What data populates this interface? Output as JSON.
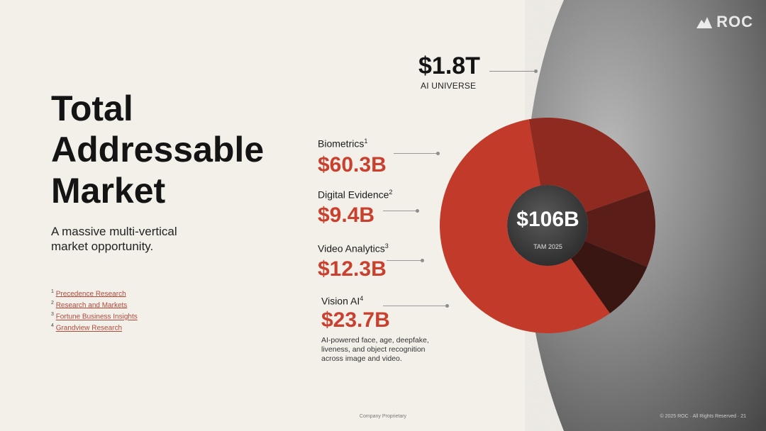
{
  "brand": {
    "logo_text": "ROC"
  },
  "slide": {
    "title_lines": [
      "Total",
      "Addressable",
      "Market"
    ],
    "subtitle": "A massive multi-vertical market opportunity."
  },
  "footnotes": [
    {
      "num": "1",
      "text": "Precedence Research"
    },
    {
      "num": "2",
      "text": "Research and Markets"
    },
    {
      "num": "3",
      "text": "Fortune Business Insights"
    },
    {
      "num": "4",
      "text": "Grandview Research"
    }
  ],
  "universe": {
    "value": "$1.8T",
    "label": "AI UNIVERSE"
  },
  "segments": [
    {
      "label": "Biometrics",
      "sup": "1",
      "value": "$60.3B"
    },
    {
      "label": "Digital Evidence",
      "sup": "2",
      "value": "$9.4B"
    },
    {
      "label": "Video Analytics",
      "sup": "3",
      "value": "$12.3B"
    },
    {
      "label": "Vision AI",
      "sup": "4",
      "value": "$23.7B",
      "description": "AI-powered face, age, deepfake, liveness, and object recognition across image and video."
    }
  ],
  "center": {
    "value": "$106B",
    "label": "TAM 2025"
  },
  "footer": {
    "center": "Company Proprietary",
    "right": "© 2025 ROC  ·  All Rights Reserved  ·  21"
  },
  "colors": {
    "accent": "#c9412e",
    "dark": "#1b1b1b",
    "background": "#f3f0ea"
  },
  "chart_data": {
    "type": "pie",
    "title": "TAM 2025",
    "total_label": "$106B",
    "categories": [
      "Biometrics",
      "Digital Evidence",
      "Video Analytics",
      "Vision AI"
    ],
    "values": [
      60.3,
      9.4,
      12.3,
      23.7
    ],
    "units": "$B"
  }
}
